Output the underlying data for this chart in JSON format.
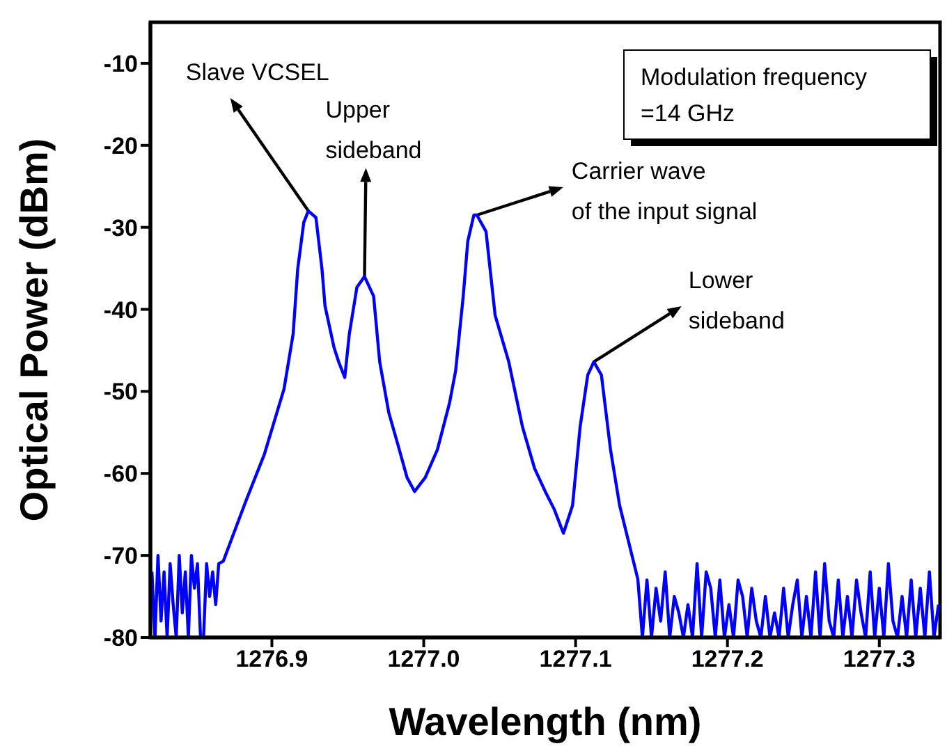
{
  "chart_data": {
    "type": "line",
    "xlabel": "Wavelength (nm)",
    "ylabel": "Optical Power (dBm)",
    "xlim": [
      1276.82,
      1277.34
    ],
    "xticks": [
      1276.9,
      {
        "value": 1277,
        "label": "1277.0"
      },
      1277.1,
      1277.2,
      1277.3
    ],
    "ylim": [
      -80,
      -5
    ],
    "yticks": [
      -80,
      -70,
      -60,
      -50,
      -40,
      -30,
      -20,
      -10
    ],
    "marker": "none",
    "line_style": "solid",
    "annotations": [
      {
        "text": "Slave VCSEL",
        "x": 1276.924,
        "y": -28
      },
      {
        "text": "Upper\nsideband",
        "x": 1276.961,
        "y": -36
      },
      {
        "text": "Carrier wave\nof the input signal",
        "x": 1277.035,
        "y": -28.5
      },
      {
        "text": "Lower\nsideband",
        "x": 1277.112,
        "y": -46.4
      },
      "Modulation frequency\n=14 GHz"
    ],
    "series": [
      {
        "color": "#0000ff",
        "x": [
          1276.821,
          1276.823,
          1276.825,
          1276.827,
          1276.829,
          1276.831,
          1276.833,
          1276.835,
          1276.837,
          1276.839,
          1276.841,
          1276.843,
          1276.845,
          1276.847,
          1276.849,
          1276.851,
          1276.853,
          1276.855,
          1276.857,
          1276.859,
          1276.861,
          1276.863,
          1276.865,
          1276.868,
          1276.883,
          1276.895,
          1276.908,
          1276.914,
          1276.917,
          1276.921,
          1276.924,
          1276.929,
          1276.933,
          1276.935,
          1276.941,
          1276.944,
          1276.948,
          1276.951,
          1276.956,
          1276.961,
          1276.967,
          1276.971,
          1276.977,
          1276.983,
          1276.989,
          1276.994,
          1277.001,
          1277.009,
          1277.017,
          1277.021,
          1277.026,
          1277.029,
          1277.033,
          1277.035,
          1277.041,
          1277.047,
          1277.056,
          1277.065,
          1277.073,
          1277.08,
          1277.086,
          1277.092,
          1277.098,
          1277.103,
          1277.108,
          1277.112,
          1277.117,
          1277.123,
          1277.129,
          1277.135,
          1277.141,
          1277.144,
          1277.147,
          1277.15,
          1277.153,
          1277.156,
          1277.159,
          1277.162,
          1277.165,
          1277.168,
          1277.171,
          1277.174,
          1277.177,
          1277.18,
          1277.183,
          1277.186,
          1277.189,
          1277.192,
          1277.195,
          1277.198,
          1277.201,
          1277.204,
          1277.207,
          1277.21,
          1277.213,
          1277.216,
          1277.219,
          1277.222,
          1277.225,
          1277.228,
          1277.231,
          1277.234,
          1277.237,
          1277.24,
          1277.243,
          1277.246,
          1277.249,
          1277.252,
          1277.255,
          1277.258,
          1277.261,
          1277.264,
          1277.267,
          1277.27,
          1277.273,
          1277.276,
          1277.279,
          1277.282,
          1277.285,
          1277.288,
          1277.291,
          1277.294,
          1277.297,
          1277.3,
          1277.303,
          1277.306,
          1277.309,
          1277.312,
          1277.315,
          1277.318,
          1277.321,
          1277.324,
          1277.327,
          1277.33,
          1277.333,
          1277.336,
          1277.339
        ],
        "values": [
          -72,
          -80,
          -70,
          -78,
          -72,
          -80,
          -71,
          -76,
          -80,
          -70,
          -77,
          -72,
          -80,
          -70,
          -74,
          -71,
          -80,
          -80,
          -71,
          -75,
          -72,
          -76,
          -71,
          -70.7,
          -63.3,
          -57.7,
          -49.7,
          -43,
          -35.1,
          -29.4,
          -28,
          -28.8,
          -35.1,
          -39.6,
          -44.7,
          -46.4,
          -48.3,
          -43,
          -37.3,
          -36,
          -38.4,
          -46.4,
          -52.6,
          -56.5,
          -60.5,
          -62.2,
          -60.5,
          -57.1,
          -51.4,
          -47.5,
          -38.4,
          -31.7,
          -28.5,
          -28.5,
          -30.5,
          -40.7,
          -46.4,
          -54.3,
          -59.4,
          -62.2,
          -64.4,
          -67.3,
          -63.9,
          -54.3,
          -48,
          -46.4,
          -48,
          -57.1,
          -63.9,
          -68.4,
          -72.9,
          -80,
          -73,
          -80,
          -74,
          -78,
          -72,
          -80,
          -75,
          -77,
          -80,
          -76,
          -80,
          -71,
          -80,
          -72,
          -74,
          -80,
          -73,
          -80,
          -76,
          -80,
          -73,
          -75,
          -80,
          -74,
          -78,
          -80,
          -75,
          -80,
          -77,
          -80,
          -74,
          -80,
          -76,
          -73,
          -80,
          -75,
          -80,
          -72,
          -80,
          -71,
          -78,
          -80,
          -73,
          -80,
          -75,
          -80,
          -73,
          -77,
          -80,
          -72,
          -80,
          -74,
          -80,
          -71,
          -78,
          -80,
          -75,
          -80,
          -73,
          -80,
          -74,
          -80,
          -72,
          -80,
          -76
        ]
      }
    ]
  }
}
